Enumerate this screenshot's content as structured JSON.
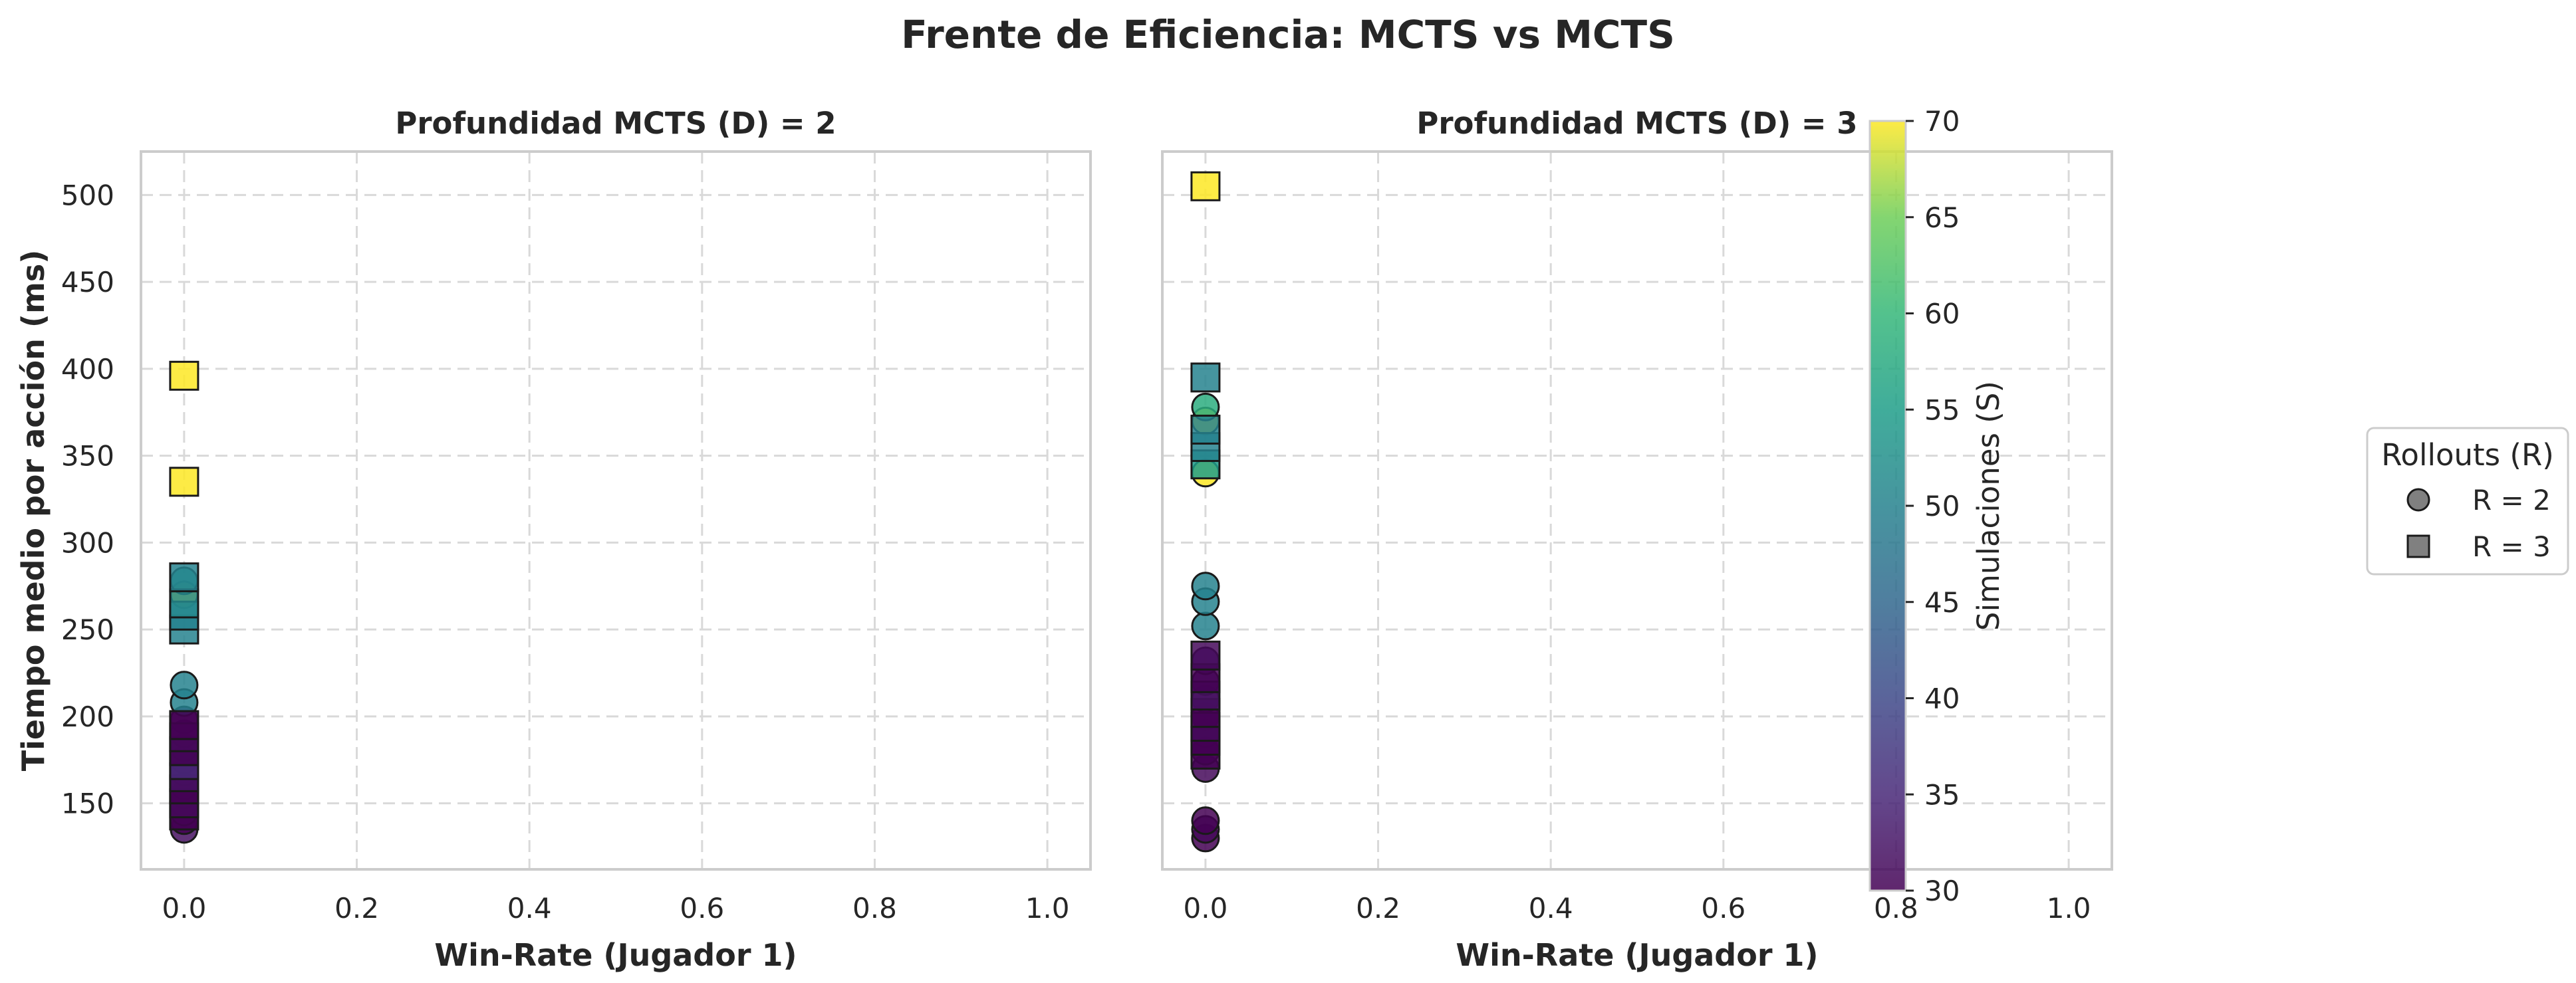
{
  "figure": {
    "title": "Frente de Eficiencia: MCTS vs MCTS"
  },
  "colorbar": {
    "label": "Simulaciones (S)",
    "range": [
      30,
      70
    ],
    "ticks": [
      30,
      35,
      40,
      45,
      50,
      55,
      60,
      65,
      70
    ],
    "colormap": "viridis"
  },
  "legend": {
    "title": "Rollouts (R)",
    "placement": "right",
    "items": [
      {
        "label": "R = 2",
        "marker": "circle",
        "color": "#808080"
      },
      {
        "label": "R = 3",
        "marker": "square",
        "color": "#808080"
      }
    ]
  },
  "chart_data": [
    {
      "type": "scatter",
      "title": "Profundidad MCTS (D) = 2",
      "xlabel": "Win-Rate (Jugador 1)",
      "ylabel": "Tiempo medio por acción (ms)",
      "xlim": [
        -0.05,
        1.05
      ],
      "ylim": [
        112,
        525
      ],
      "xticks": [
        "0.0",
        "0.2",
        "0.4",
        "0.6",
        "0.8",
        "1.0"
      ],
      "yticks": [
        "150",
        "200",
        "250",
        "300",
        "350",
        "400",
        "450",
        "500"
      ],
      "grid": true,
      "series": [
        {
          "name": "R = 2",
          "marker": "circle",
          "points": [
            {
              "x": 0.0,
              "y": 135,
              "s": 32
            },
            {
              "x": 0.0,
              "y": 140,
              "s": 30
            },
            {
              "x": 0.0,
              "y": 145,
              "s": 31
            },
            {
              "x": 0.0,
              "y": 150,
              "s": 32
            },
            {
              "x": 0.0,
              "y": 155,
              "s": 30
            },
            {
              "x": 0.0,
              "y": 160,
              "s": 31
            },
            {
              "x": 0.0,
              "y": 168,
              "s": 34
            },
            {
              "x": 0.0,
              "y": 175,
              "s": 30
            },
            {
              "x": 0.0,
              "y": 182,
              "s": 32
            },
            {
              "x": 0.0,
              "y": 190,
              "s": 31
            },
            {
              "x": 0.0,
              "y": 198,
              "s": 30
            },
            {
              "x": 0.0,
              "y": 208,
              "s": 50
            },
            {
              "x": 0.0,
              "y": 218,
              "s": 50
            },
            {
              "x": 0.0,
              "y": 270,
              "s": 70
            },
            {
              "x": 0.0,
              "y": 278,
              "s": 55
            }
          ]
        },
        {
          "name": "R = 3",
          "marker": "square",
          "points": [
            {
              "x": 0.0,
              "y": 143,
              "s": 30
            },
            {
              "x": 0.0,
              "y": 150,
              "s": 31
            },
            {
              "x": 0.0,
              "y": 158,
              "s": 30
            },
            {
              "x": 0.0,
              "y": 165,
              "s": 32
            },
            {
              "x": 0.0,
              "y": 172,
              "s": 35
            },
            {
              "x": 0.0,
              "y": 180,
              "s": 30
            },
            {
              "x": 0.0,
              "y": 188,
              "s": 31
            },
            {
              "x": 0.0,
              "y": 195,
              "s": 30
            },
            {
              "x": 0.0,
              "y": 250,
              "s": 50
            },
            {
              "x": 0.0,
              "y": 258,
              "s": 50
            },
            {
              "x": 0.0,
              "y": 265,
              "s": 51
            },
            {
              "x": 0.0,
              "y": 280,
              "s": 50
            },
            {
              "x": 0.0,
              "y": 335,
              "s": 70
            },
            {
              "x": 0.0,
              "y": 396,
              "s": 70
            }
          ]
        }
      ]
    },
    {
      "type": "scatter",
      "title": "Profundidad MCTS (D) = 3",
      "xlabel": "Win-Rate (Jugador 1)",
      "ylabel": "",
      "xlim": [
        -0.05,
        1.05
      ],
      "ylim": [
        112,
        525
      ],
      "xticks": [
        "0.0",
        "0.2",
        "0.4",
        "0.6",
        "0.8",
        "1.0"
      ],
      "yticks": [],
      "grid": true,
      "series": [
        {
          "name": "R = 2",
          "marker": "circle",
          "points": [
            {
              "x": 0.0,
              "y": 130,
              "s": 30
            },
            {
              "x": 0.0,
              "y": 135,
              "s": 31
            },
            {
              "x": 0.0,
              "y": 140,
              "s": 30
            },
            {
              "x": 0.0,
              "y": 170,
              "s": 31
            },
            {
              "x": 0.0,
              "y": 180,
              "s": 30
            },
            {
              "x": 0.0,
              "y": 190,
              "s": 32
            },
            {
              "x": 0.0,
              "y": 200,
              "s": 30
            },
            {
              "x": 0.0,
              "y": 210,
              "s": 31
            },
            {
              "x": 0.0,
              "y": 220,
              "s": 33
            },
            {
              "x": 0.0,
              "y": 232,
              "s": 34
            },
            {
              "x": 0.0,
              "y": 252,
              "s": 50
            },
            {
              "x": 0.0,
              "y": 266,
              "s": 50
            },
            {
              "x": 0.0,
              "y": 275,
              "s": 50
            },
            {
              "x": 0.0,
              "y": 340,
              "s": 70
            },
            {
              "x": 0.0,
              "y": 370,
              "s": 70
            },
            {
              "x": 0.0,
              "y": 378,
              "s": 58
            }
          ]
        },
        {
          "name": "R = 3",
          "marker": "square",
          "points": [
            {
              "x": 0.0,
              "y": 178,
              "s": 30
            },
            {
              "x": 0.0,
              "y": 186,
              "s": 30
            },
            {
              "x": 0.0,
              "y": 194,
              "s": 31
            },
            {
              "x": 0.0,
              "y": 202,
              "s": 30
            },
            {
              "x": 0.0,
              "y": 212,
              "s": 32
            },
            {
              "x": 0.0,
              "y": 222,
              "s": 30
            },
            {
              "x": 0.0,
              "y": 235,
              "s": 31
            },
            {
              "x": 0.0,
              "y": 345,
              "s": 55
            },
            {
              "x": 0.0,
              "y": 355,
              "s": 50
            },
            {
              "x": 0.0,
              "y": 365,
              "s": 50
            },
            {
              "x": 0.0,
              "y": 395,
              "s": 50
            },
            {
              "x": 0.0,
              "y": 505,
              "s": 70
            }
          ]
        }
      ]
    }
  ]
}
